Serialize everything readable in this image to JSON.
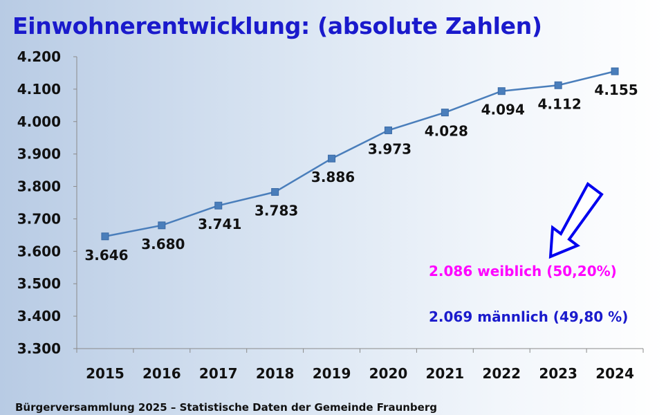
{
  "title": "Einwohnerentwicklung: (absolute Zahlen)",
  "footer": "Bürgerversammlung 2025 – Statistische Daten der Gemeinde Fraunberg",
  "stats": {
    "female": "2.086 weiblich (50,20%)",
    "male": "2.069 männlich (49,80 %)"
  },
  "colors": {
    "title": "#1a1acc",
    "line": "#4a7ebb",
    "female": "#ff00ff",
    "male": "#1a1acc",
    "arrow": "#0000ee"
  },
  "chart_data": {
    "type": "line",
    "x": [
      "2015",
      "2016",
      "2017",
      "2018",
      "2019",
      "2020",
      "2021",
      "2022",
      "2023",
      "2024"
    ],
    "values": [
      3646,
      3680,
      3741,
      3783,
      3886,
      3973,
      4028,
      4094,
      4112,
      4155
    ],
    "value_labels": [
      "3.646",
      "3.680",
      "3.741",
      "3.783",
      "3.886",
      "3.973",
      "4.028",
      "4.094",
      "4.112",
      "4.155"
    ],
    "ylim": [
      3300,
      4200
    ],
    "yticks": [
      3300,
      3400,
      3500,
      3600,
      3700,
      3800,
      3900,
      4000,
      4100,
      4200
    ],
    "ytick_labels": [
      "3.300",
      "3.400",
      "3.500",
      "3.600",
      "3.700",
      "3.800",
      "3.900",
      "4.000",
      "4.100",
      "4.200"
    ],
    "grid": false,
    "legend": "none",
    "marker": "square"
  }
}
